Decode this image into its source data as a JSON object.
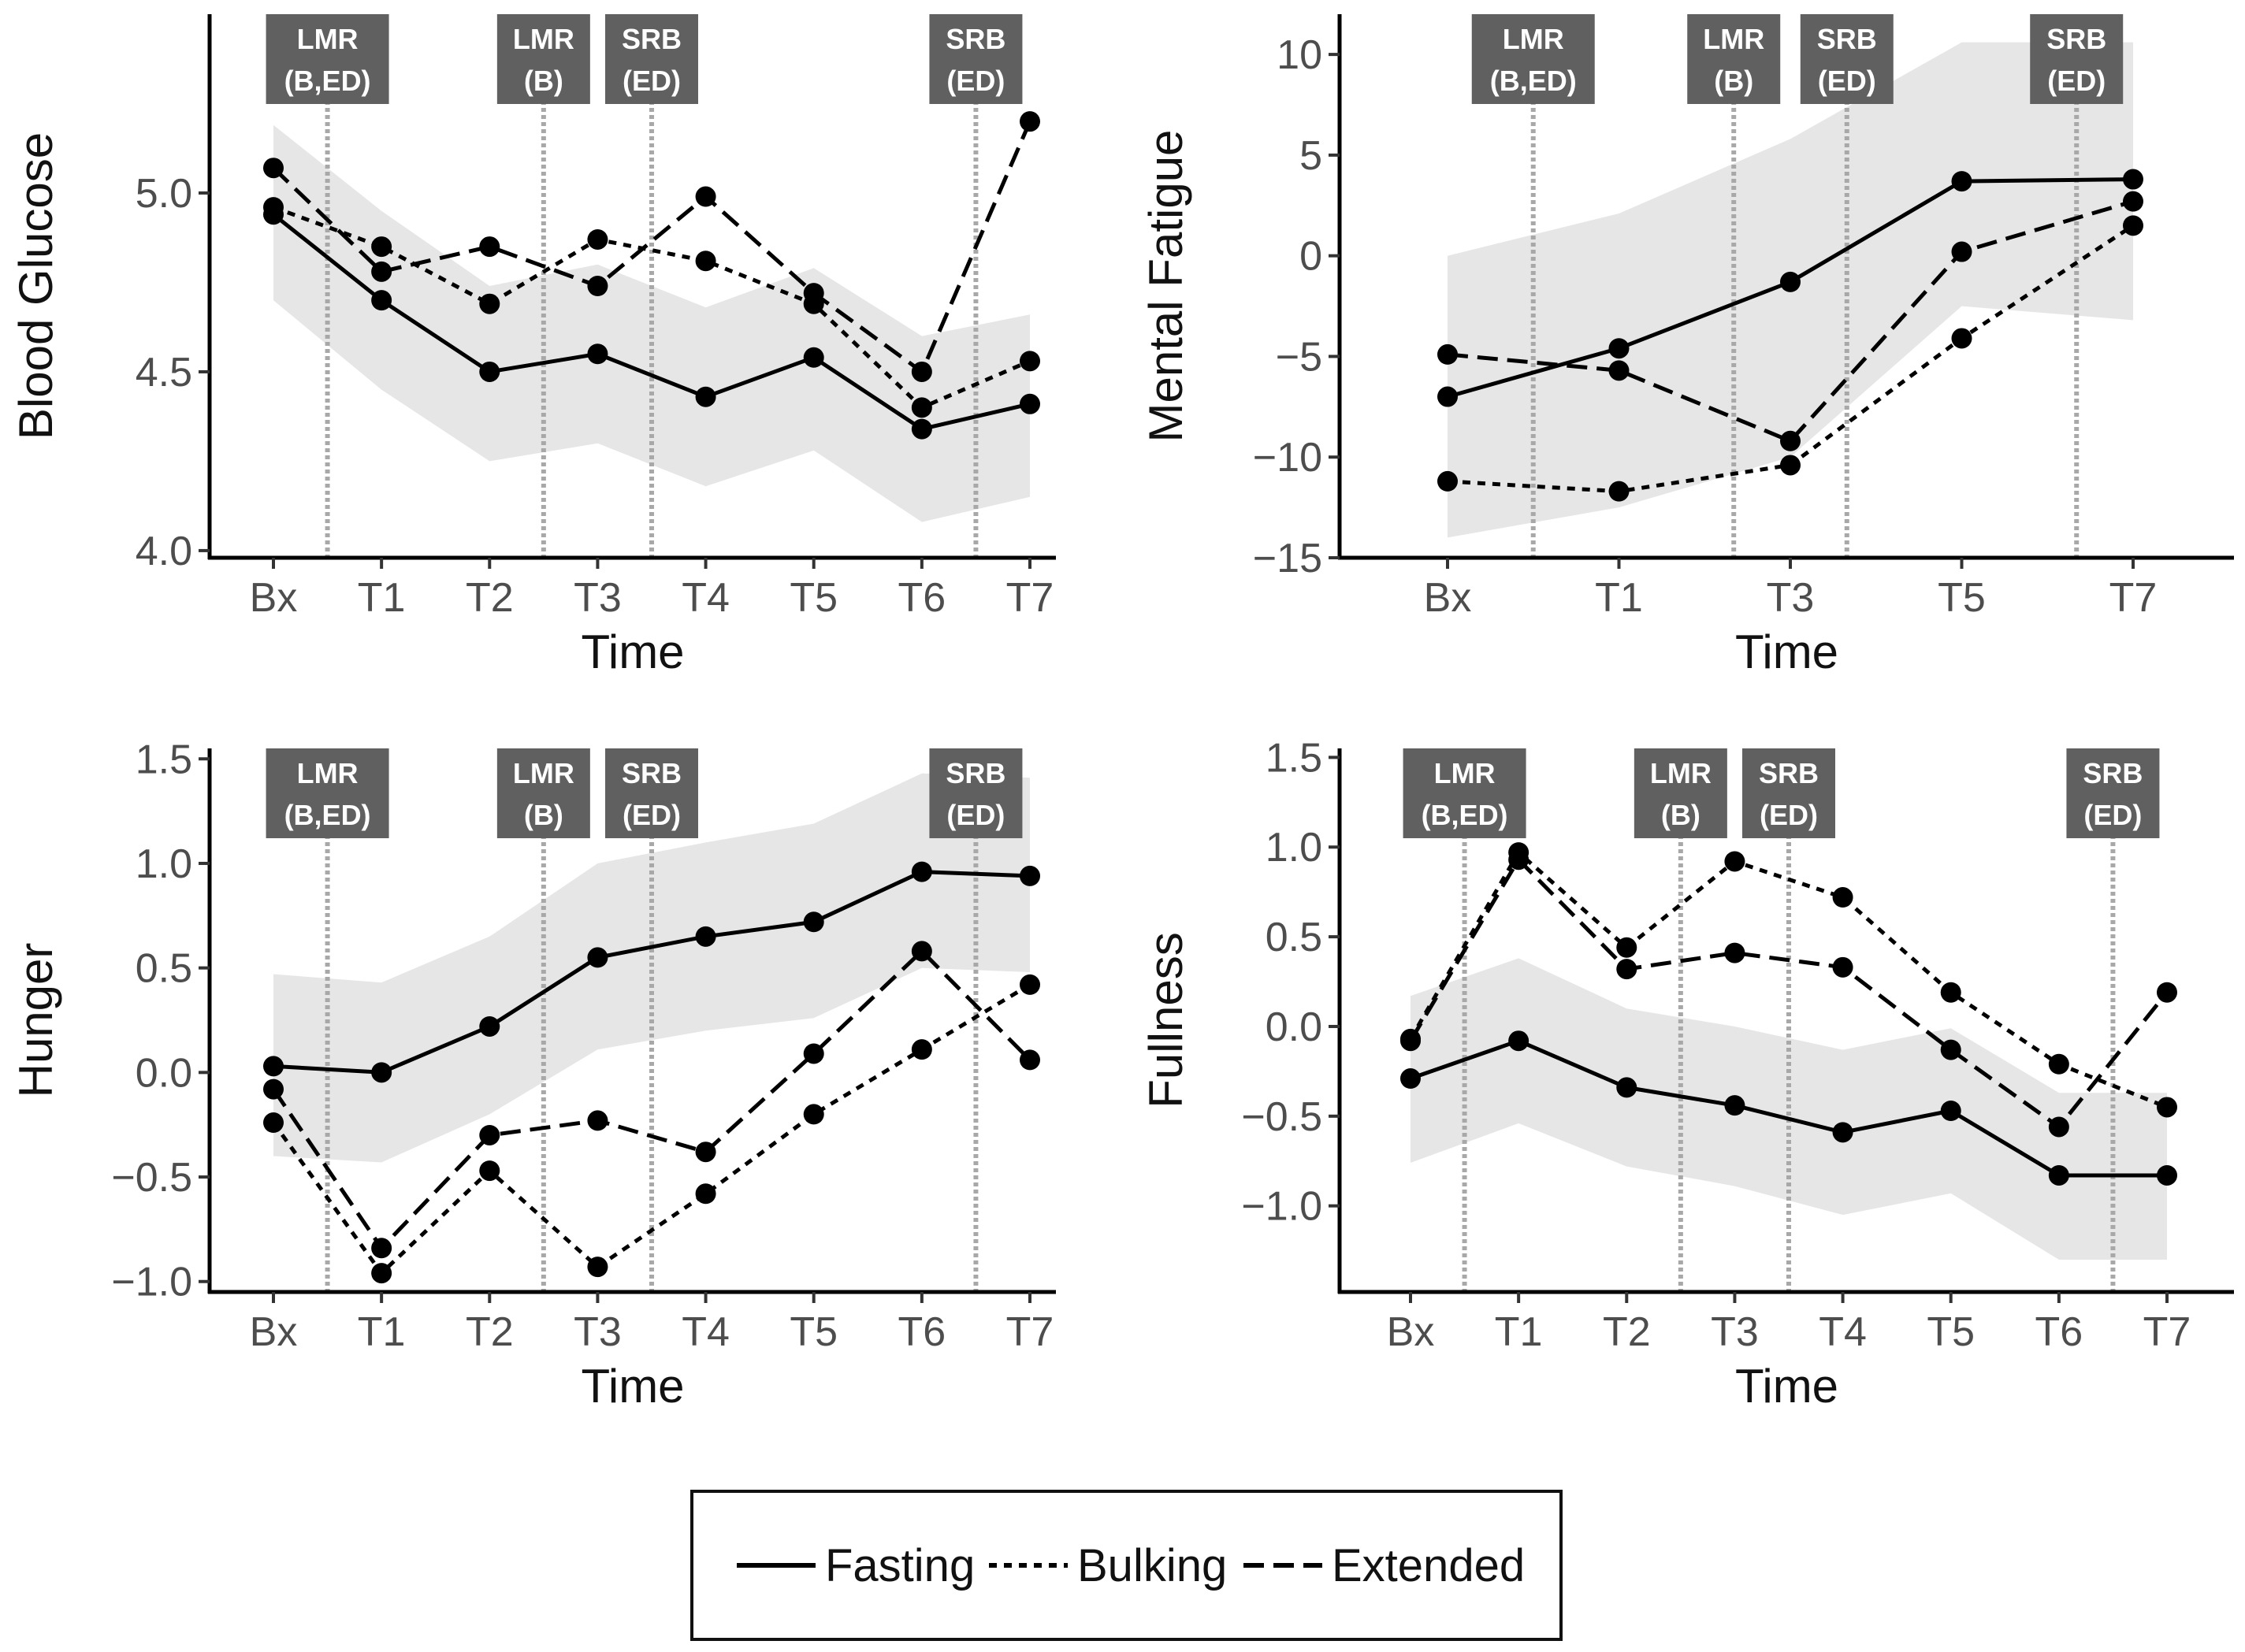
{
  "legend": [
    {
      "name": "Fasting",
      "dash": "solid"
    },
    {
      "name": "Bulking",
      "dash": "dotted"
    },
    {
      "name": "Extended",
      "dash": "dashed"
    }
  ],
  "chart_data": [
    {
      "id": "blood-glucose",
      "type": "line",
      "title": "",
      "xlabel": "Time",
      "ylabel": "Blood Glucose",
      "categories": [
        "Bx",
        "T1",
        "T2",
        "T3",
        "T4",
        "T5",
        "T6",
        "T7"
      ],
      "ylim": [
        3.98,
        5.5
      ],
      "yticks": [
        4.0,
        4.5,
        5.0
      ],
      "ytick_labels": [
        "4.0",
        "4.5",
        "5.0"
      ],
      "series": [
        {
          "name": "Fasting",
          "x": [
            0,
            1,
            2,
            3,
            4,
            5,
            6,
            7
          ],
          "values": [
            4.94,
            4.7,
            4.5,
            4.55,
            4.43,
            4.54,
            4.34,
            4.41
          ]
        },
        {
          "name": "Bulking",
          "x": [
            0,
            1,
            2,
            3,
            4,
            5,
            6,
            7
          ],
          "values": [
            4.96,
            4.85,
            4.69,
            4.87,
            4.81,
            4.69,
            4.4,
            4.53
          ]
        },
        {
          "name": "Extended",
          "x": [
            0,
            1,
            2,
            3,
            4,
            5,
            6,
            7
          ],
          "values": [
            5.07,
            4.78,
            4.85,
            4.74,
            4.99,
            4.72,
            4.5,
            5.2
          ]
        }
      ],
      "band": {
        "x": [
          0,
          1,
          2,
          3,
          4,
          5,
          6,
          7
        ],
        "lower": [
          4.7,
          4.45,
          4.25,
          4.3,
          4.18,
          4.28,
          4.08,
          4.15
        ],
        "upper": [
          5.19,
          4.95,
          4.74,
          4.8,
          4.68,
          4.79,
          4.6,
          4.66
        ]
      },
      "markers": [
        {
          "x": 0.5,
          "line1": "LMR",
          "line2": "(B,ED)"
        },
        {
          "x": 2.5,
          "line1": "LMR",
          "line2": "(B)"
        },
        {
          "x": 3.5,
          "line1": "SRB",
          "line2": "(ED)"
        },
        {
          "x": 6.5,
          "line1": "SRB",
          "line2": "(ED)"
        }
      ]
    },
    {
      "id": "mental-fatigue",
      "type": "line",
      "title": "",
      "xlabel": "Time",
      "ylabel": "Mental Fatigue",
      "categories": [
        "Bx",
        "T1",
        "T3",
        "T5",
        "T7"
      ],
      "ylim": [
        -15,
        12
      ],
      "yticks": [
        -15,
        -10,
        -5,
        0,
        5,
        10
      ],
      "ytick_labels": [
        "−15",
        "−10",
        "−5",
        "0",
        "5",
        "10"
      ],
      "series": [
        {
          "name": "Fasting",
          "x": [
            0,
            1,
            2,
            3,
            4
          ],
          "values": [
            -7.0,
            -4.6,
            -1.3,
            3.7,
            3.8
          ]
        },
        {
          "name": "Bulking",
          "x": [
            0,
            1,
            2,
            3,
            4
          ],
          "values": [
            -11.2,
            -11.7,
            -10.4,
            -4.1,
            1.5
          ]
        },
        {
          "name": "Extended",
          "x": [
            0,
            1,
            2,
            3,
            4
          ],
          "values": [
            -4.9,
            -5.7,
            -9.2,
            0.2,
            2.7
          ]
        }
      ],
      "band": {
        "x": [
          0,
          1,
          2,
          3,
          4
        ],
        "lower": [
          -14.0,
          -12.5,
          -10.0,
          -2.5,
          -3.2
        ],
        "upper": [
          0.0,
          2.1,
          5.8,
          10.6,
          10.6
        ]
      },
      "markers": [
        {
          "x": 0.5,
          "line1": "LMR",
          "line2": "(B,ED)"
        },
        {
          "x": 1.67,
          "line1": "LMR",
          "line2": "(B)"
        },
        {
          "x": 2.33,
          "line1": "SRB",
          "line2": "(ED)"
        },
        {
          "x": 3.67,
          "line1": "SRB",
          "line2": "(ED)"
        }
      ]
    },
    {
      "id": "hunger",
      "type": "line",
      "title": "",
      "xlabel": "Time",
      "ylabel": "Hunger",
      "categories": [
        "Bx",
        "T1",
        "T2",
        "T3",
        "T4",
        "T5",
        "T6",
        "T7"
      ],
      "ylim": [
        -1.05,
        1.55
      ],
      "yticks": [
        -1.0,
        -0.5,
        0.0,
        0.5,
        1.0,
        1.5
      ],
      "ytick_labels": [
        "−1.0",
        "−0.5",
        "0.0",
        "0.5",
        "1.0",
        "1.5"
      ],
      "series": [
        {
          "name": "Fasting",
          "x": [
            0,
            1,
            2,
            3,
            4,
            5,
            6,
            7
          ],
          "values": [
            0.03,
            0.0,
            0.22,
            0.55,
            0.65,
            0.72,
            0.96,
            0.94
          ]
        },
        {
          "name": "Bulking",
          "x": [
            0,
            1,
            2,
            3,
            4,
            5,
            6,
            7
          ],
          "values": [
            -0.24,
            -0.96,
            -0.47,
            -0.93,
            -0.58,
            -0.2,
            0.11,
            0.42
          ]
        },
        {
          "name": "Extended",
          "x": [
            0,
            1,
            2,
            3,
            4,
            5,
            6,
            7
          ],
          "values": [
            -0.08,
            -0.84,
            -0.3,
            -0.23,
            -0.38,
            0.09,
            0.58,
            0.06
          ]
        }
      ],
      "band": {
        "x": [
          0,
          1,
          2,
          3,
          4,
          5,
          6,
          7
        ],
        "lower": [
          -0.4,
          -0.43,
          -0.2,
          0.11,
          0.2,
          0.26,
          0.5,
          0.48
        ],
        "upper": [
          0.47,
          0.43,
          0.65,
          1.0,
          1.1,
          1.19,
          1.43,
          1.41
        ]
      },
      "markers": [
        {
          "x": 0.5,
          "line1": "LMR",
          "line2": "(B,ED)"
        },
        {
          "x": 2.5,
          "line1": "LMR",
          "line2": "(B)"
        },
        {
          "x": 3.5,
          "line1": "SRB",
          "line2": "(ED)"
        },
        {
          "x": 6.5,
          "line1": "SRB",
          "line2": "(ED)"
        }
      ]
    },
    {
      "id": "fullness",
      "type": "line",
      "title": "",
      "xlabel": "Time",
      "ylabel": "Fullness",
      "categories": [
        "Bx",
        "T1",
        "T2",
        "T3",
        "T4",
        "T5",
        "T6",
        "T7"
      ],
      "ylim": [
        -1.48,
        1.55
      ],
      "yticks": [
        -1.0,
        -0.5,
        0.0,
        0.5,
        1.0,
        1.5
      ],
      "ytick_labels": [
        "−1.0",
        "−0.5",
        "0.0",
        "0.5",
        "1.0",
        "1.5"
      ],
      "series": [
        {
          "name": "Fasting",
          "x": [
            0,
            1,
            2,
            3,
            4,
            5,
            6,
            7
          ],
          "values": [
            -0.29,
            -0.08,
            -0.34,
            -0.44,
            -0.59,
            -0.47,
            -0.83,
            -0.83
          ]
        },
        {
          "name": "Bulking",
          "x": [
            0,
            1,
            2,
            3,
            4,
            5,
            6,
            7
          ],
          "values": [
            -0.07,
            0.97,
            0.44,
            0.92,
            0.72,
            0.19,
            -0.21,
            -0.45
          ]
        },
        {
          "name": "Extended",
          "x": [
            0,
            1,
            2,
            3,
            4,
            5,
            6,
            7
          ],
          "values": [
            -0.08,
            0.93,
            0.32,
            0.41,
            0.33,
            -0.13,
            -0.56,
            0.19
          ]
        }
      ],
      "band": {
        "x": [
          0,
          1,
          2,
          3,
          4,
          5,
          6,
          7
        ],
        "lower": [
          -0.76,
          -0.54,
          -0.78,
          -0.89,
          -1.05,
          -0.93,
          -1.3,
          -1.3
        ],
        "upper": [
          0.17,
          0.38,
          0.1,
          0.0,
          -0.13,
          -0.01,
          -0.37,
          -0.37
        ]
      },
      "markers": [
        {
          "x": 0.5,
          "line1": "LMR",
          "line2": "(B,ED)"
        },
        {
          "x": 2.5,
          "line1": "LMR",
          "line2": "(B)"
        },
        {
          "x": 3.5,
          "line1": "SRB",
          "line2": "(ED)"
        },
        {
          "x": 6.5,
          "line1": "SRB",
          "line2": "(ED)"
        }
      ]
    }
  ]
}
